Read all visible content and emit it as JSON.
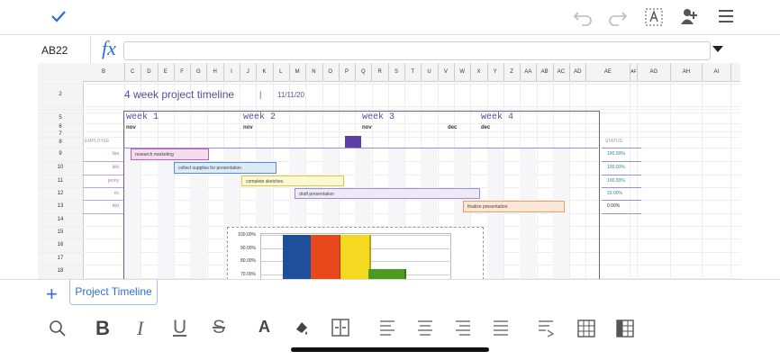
{
  "formula_bar": {
    "cell_ref": "AB22",
    "fx": "fx"
  },
  "columns": [
    "B",
    "C",
    "D",
    "E",
    "F",
    "G",
    "H",
    "I",
    "J",
    "K",
    "L",
    "M",
    "N",
    "O",
    "P",
    "Q",
    "R",
    "S",
    "T",
    "U",
    "V",
    "W",
    "X",
    "Y",
    "Z",
    "AA",
    "AB",
    "AC",
    "AD",
    "AE",
    "AF",
    "AG",
    "AH",
    "AI"
  ],
  "rows": [
    "2",
    "5",
    "6",
    "7",
    "8",
    "9",
    "10",
    "11",
    "12",
    "13",
    "14",
    "15",
    "16",
    "17",
    "18"
  ],
  "sheet": {
    "title": "4 week project timeline",
    "separator": "|",
    "date": "11/11/20",
    "weeks": [
      {
        "label": "week 1",
        "month": "nov"
      },
      {
        "label": "week 2",
        "month": "nov"
      },
      {
        "label": "week 3",
        "month": "nov"
      },
      {
        "label": "week 4",
        "month": "dec"
      }
    ],
    "extra_month": "dec",
    "employee_header": "EMPLOYEE",
    "status_header": "STATUS",
    "tasks": [
      {
        "name": "research marketing",
        "employee": "lisa",
        "status": "100.00%"
      },
      {
        "name": "collect supplies for presentation",
        "employee": "kiki",
        "status": "100.00%"
      },
      {
        "name": "complete sketches",
        "employee": "jenny",
        "status": "100.00%"
      },
      {
        "name": "draft presentation",
        "employee": "ric",
        "status": "33.00%"
      },
      {
        "name": "finalize presentation",
        "employee": "kiki",
        "status": "0.00%"
      }
    ],
    "chart_ticks": [
      "100.00%",
      "90.00%",
      "80.00%",
      "70.00%"
    ]
  },
  "tabs": {
    "add": "+",
    "sheets": [
      "Project Timeline"
    ]
  },
  "format_toolbar": {
    "bold": "B",
    "italic": "I",
    "underline": "U",
    "strike": "S",
    "font": "A"
  }
}
